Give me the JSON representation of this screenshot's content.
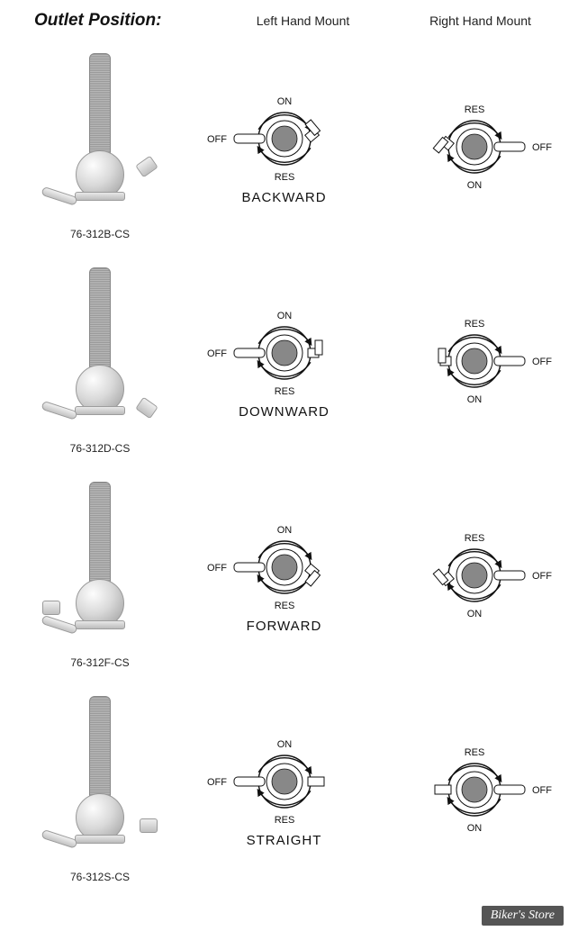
{
  "title": "Outlet Position:",
  "columns": {
    "left": "Left Hand Mount",
    "right": "Right Hand Mount"
  },
  "rows": [
    {
      "part": "76-312B-CS",
      "name": "BACKWARD",
      "outlet_class": "right-up",
      "left": {
        "top": "ON",
        "bottom": "RES",
        "lever": "OFF",
        "lever_side": "left",
        "port_side": "right",
        "port_rot": -40
      },
      "right": {
        "top": "RES",
        "bottom": "ON",
        "lever": "OFF",
        "lever_side": "right",
        "port_side": "left",
        "port_rot": 40
      }
    },
    {
      "part": "76-312D-CS",
      "name": "DOWNWARD",
      "outlet_class": "right-down",
      "left": {
        "top": "ON",
        "bottom": "RES",
        "lever": "OFF",
        "lever_side": "left",
        "port_side": "right",
        "port_rot": 0
      },
      "right": {
        "top": "RES",
        "bottom": "ON",
        "lever": "OFF",
        "lever_side": "right",
        "port_side": "left",
        "port_rot": 0
      }
    },
    {
      "part": "76-312F-CS",
      "name": "FORWARD",
      "outlet_class": "left-side",
      "left": {
        "top": "ON",
        "bottom": "RES",
        "lever": "OFF",
        "lever_side": "left",
        "port_side": "right",
        "port_rot": 40
      },
      "right": {
        "top": "RES",
        "bottom": "ON",
        "lever": "OFF",
        "lever_side": "right",
        "port_side": "left",
        "port_rot": -40
      }
    },
    {
      "part": "76-312S-CS",
      "name": "STRAIGHT",
      "outlet_class": "right-side",
      "left": {
        "top": "ON",
        "bottom": "RES",
        "lever": "OFF",
        "lever_side": "left",
        "port_side": "right",
        "port_rot": 0,
        "port_straight": true
      },
      "right": {
        "top": "RES",
        "bottom": "ON",
        "lever": "OFF",
        "lever_side": "right",
        "port_side": "left",
        "port_rot": 0,
        "port_straight": true
      }
    }
  ],
  "dial_style": {
    "radius": 26,
    "stroke": "#111111",
    "fill_hatch": "#555555",
    "label_font": 11,
    "arrow_stroke_w": 1.4
  },
  "watermark": "Biker's Store",
  "colors": {
    "bg": "#ffffff",
    "text": "#111111",
    "metal_light": "#f0f0f0",
    "metal_dark": "#b0b0b0"
  }
}
